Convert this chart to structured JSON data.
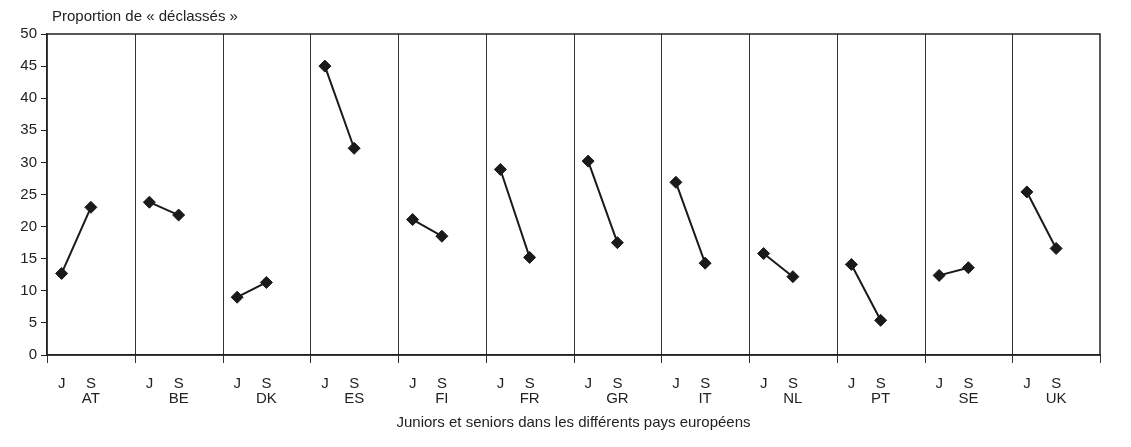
{
  "chart_data": {
    "type": "line",
    "ylabel": "Proportion de « déclassés »",
    "xlabel": "Juniors et seniors dans les différents pays européens",
    "categories": [
      "J",
      "S",
      null,
      "J",
      "S",
      null,
      "J",
      "S",
      null,
      "J",
      "S",
      null,
      "J",
      "S",
      null,
      "J",
      "S",
      null,
      "J",
      "S",
      null,
      "J",
      "S",
      null,
      "J",
      "S",
      null,
      "J",
      "S",
      null,
      "J",
      "S",
      null,
      "J",
      "S",
      null
    ],
    "ylim": [
      0,
      50
    ],
    "yticks": [
      0,
      5,
      10,
      15,
      20,
      25,
      30,
      35,
      40,
      45,
      50
    ],
    "legend": false,
    "annotations": [
      "AT",
      "BE",
      "DK",
      "ES",
      "FI",
      "FR",
      "GR",
      "IT",
      "NL",
      "PT",
      "SE",
      "UK"
    ],
    "marker": "diamond",
    "line_style": "solid",
    "series": [
      {
        "color": "#1a1a1a",
        "values": [
          12.7,
          23,
          null,
          null,
          null,
          null,
          null,
          null,
          null,
          null,
          null,
          null,
          null,
          null,
          null,
          null,
          null,
          null,
          null,
          null,
          null,
          null,
          null,
          null,
          null,
          null,
          null,
          null,
          null,
          null,
          null,
          null,
          null,
          null,
          null,
          null
        ]
      },
      {
        "color": "#1a1a1a",
        "values": [
          null,
          null,
          null,
          23.8,
          21.8,
          null,
          null,
          null,
          null,
          null,
          null,
          null,
          null,
          null,
          null,
          null,
          null,
          null,
          null,
          null,
          null,
          null,
          null,
          null,
          null,
          null,
          null,
          null,
          null,
          null,
          null,
          null,
          null,
          null,
          null,
          null
        ]
      },
      {
        "color": "#1a1a1a",
        "values": [
          null,
          null,
          null,
          null,
          null,
          null,
          9,
          11.3,
          null,
          null,
          null,
          null,
          null,
          null,
          null,
          null,
          null,
          null,
          null,
          null,
          null,
          null,
          null,
          null,
          null,
          null,
          null,
          null,
          null,
          null,
          null,
          null,
          null,
          null,
          null,
          null
        ]
      },
      {
        "color": "#1a1a1a",
        "values": [
          null,
          null,
          null,
          null,
          null,
          null,
          null,
          null,
          null,
          45,
          32.2,
          null,
          null,
          null,
          null,
          null,
          null,
          null,
          null,
          null,
          null,
          null,
          null,
          null,
          null,
          null,
          null,
          null,
          null,
          null,
          null,
          null,
          null,
          null,
          null,
          null
        ]
      },
      {
        "color": "#1a1a1a",
        "values": [
          null,
          null,
          null,
          null,
          null,
          null,
          null,
          null,
          null,
          null,
          null,
          null,
          21.1,
          18.5,
          null,
          null,
          null,
          null,
          null,
          null,
          null,
          null,
          null,
          null,
          null,
          null,
          null,
          null,
          null,
          null,
          null,
          null,
          null,
          null,
          null,
          null
        ]
      },
      {
        "color": "#1a1a1a",
        "values": [
          null,
          null,
          null,
          null,
          null,
          null,
          null,
          null,
          null,
          null,
          null,
          null,
          null,
          null,
          null,
          28.9,
          15.2,
          null,
          null,
          null,
          null,
          null,
          null,
          null,
          null,
          null,
          null,
          null,
          null,
          null,
          null,
          null,
          null,
          null,
          null,
          null
        ]
      },
      {
        "color": "#1a1a1a",
        "values": [
          null,
          null,
          null,
          null,
          null,
          null,
          null,
          null,
          null,
          null,
          null,
          null,
          null,
          null,
          null,
          null,
          null,
          null,
          30.2,
          17.5,
          null,
          null,
          null,
          null,
          null,
          null,
          null,
          null,
          null,
          null,
          null,
          null,
          null,
          null,
          null,
          null
        ]
      },
      {
        "color": "#1a1a1a",
        "values": [
          null,
          null,
          null,
          null,
          null,
          null,
          null,
          null,
          null,
          null,
          null,
          null,
          null,
          null,
          null,
          null,
          null,
          null,
          null,
          null,
          null,
          26.9,
          14.3,
          null,
          null,
          null,
          null,
          null,
          null,
          null,
          null,
          null,
          null,
          null,
          null,
          null
        ]
      },
      {
        "color": "#1a1a1a",
        "values": [
          null,
          null,
          null,
          null,
          null,
          null,
          null,
          null,
          null,
          null,
          null,
          null,
          null,
          null,
          null,
          null,
          null,
          null,
          null,
          null,
          null,
          null,
          null,
          null,
          15.8,
          12.2,
          null,
          null,
          null,
          null,
          null,
          null,
          null,
          null,
          null,
          null
        ]
      },
      {
        "color": "#1a1a1a",
        "values": [
          null,
          null,
          null,
          null,
          null,
          null,
          null,
          null,
          null,
          null,
          null,
          null,
          null,
          null,
          null,
          null,
          null,
          null,
          null,
          null,
          null,
          null,
          null,
          null,
          null,
          null,
          null,
          14.1,
          5.4,
          null,
          null,
          null,
          null,
          null,
          null,
          null
        ]
      },
      {
        "color": "#1a1a1a",
        "values": [
          null,
          null,
          null,
          null,
          null,
          null,
          null,
          null,
          null,
          null,
          null,
          null,
          null,
          null,
          null,
          null,
          null,
          null,
          null,
          null,
          null,
          null,
          null,
          null,
          null,
          null,
          null,
          null,
          null,
          null,
          12.4,
          13.6,
          null,
          null,
          null,
          null
        ]
      },
      {
        "color": "#1a1a1a",
        "values": [
          null,
          null,
          null,
          null,
          null,
          null,
          null,
          null,
          null,
          null,
          null,
          null,
          null,
          null,
          null,
          null,
          null,
          null,
          null,
          null,
          null,
          null,
          null,
          null,
          null,
          null,
          null,
          null,
          null,
          null,
          null,
          null,
          null,
          25.4,
          16.6,
          null
        ]
      }
    ]
  }
}
